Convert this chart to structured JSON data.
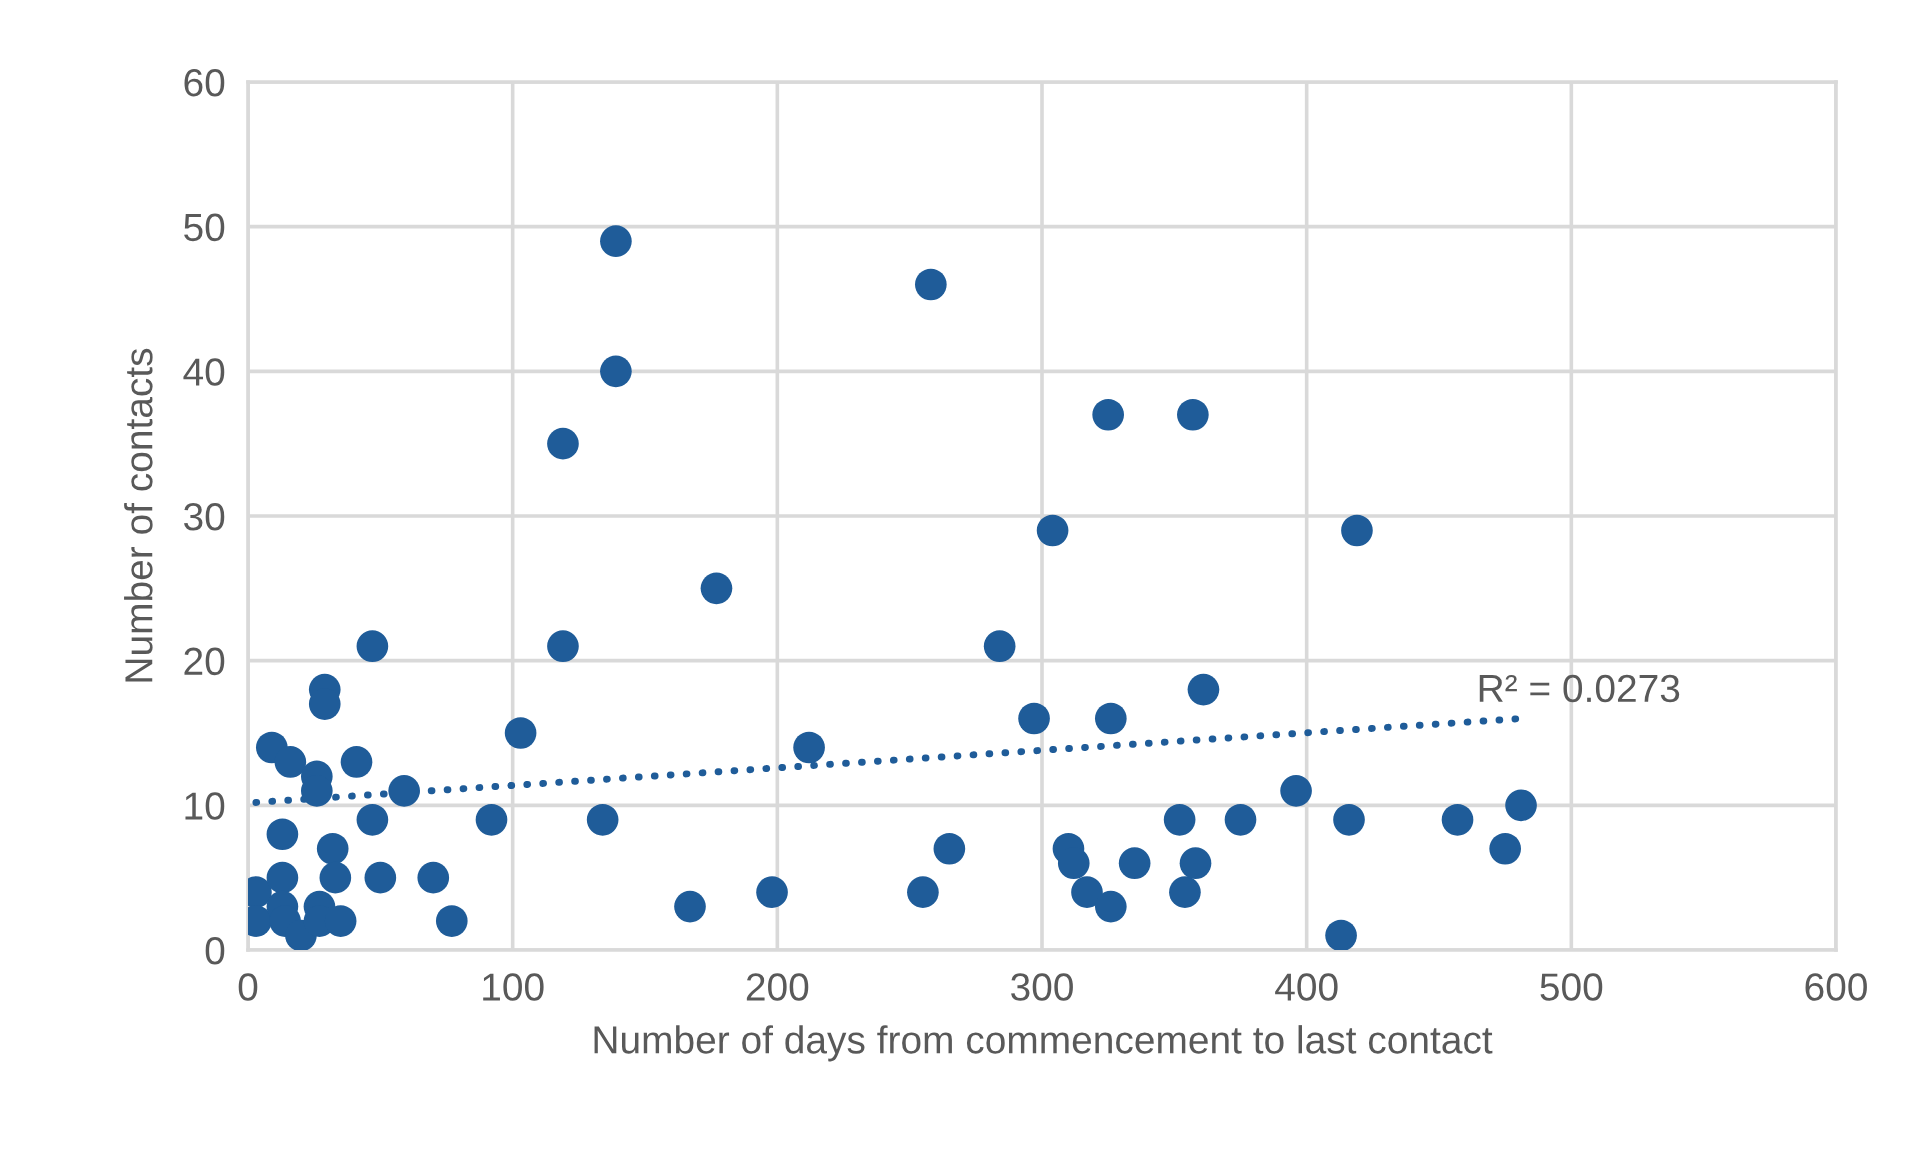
{
  "chart_data": {
    "type": "scatter",
    "xlabel": "Number of days from commencement to last contact",
    "ylabel": "Number of contacts",
    "xlim": [
      0,
      600
    ],
    "xticks": [
      0,
      100,
      200,
      300,
      400,
      500,
      600
    ],
    "ylim": [
      0,
      60
    ],
    "yticks": [
      0,
      10,
      20,
      30,
      40,
      50,
      60
    ],
    "grid": true,
    "marker": "circle",
    "series": [
      {
        "color": "#1f5c99",
        "x": [
          3,
          3,
          9,
          13,
          13,
          13,
          14,
          16,
          20,
          26,
          26,
          27,
          27,
          29,
          29,
          32,
          33,
          35,
          41,
          47,
          47,
          50,
          59,
          70,
          77,
          92,
          103,
          119,
          119,
          134,
          139,
          139,
          167,
          177,
          198,
          212,
          255,
          258,
          265,
          284,
          297,
          304,
          310,
          312,
          317,
          326,
          325,
          326,
          335,
          352,
          357,
          354,
          358,
          361,
          375,
          396,
          413,
          416,
          419,
          457,
          475,
          481
        ],
        "values": [
          4,
          2,
          14,
          8,
          5,
          3,
          2,
          13,
          1,
          12,
          11,
          3,
          2,
          18,
          17,
          7,
          5,
          2,
          13,
          21,
          9,
          5,
          11,
          5,
          2,
          9,
          15,
          35,
          21,
          9,
          49,
          40,
          3,
          25,
          4,
          14,
          4,
          46,
          7,
          21,
          16,
          29,
          7,
          6,
          4,
          16,
          37,
          3,
          6,
          9,
          37,
          4,
          6,
          18,
          9,
          11,
          1,
          9,
          29,
          9,
          7,
          10
        ]
      },
      {
        "type": "line",
        "color": "#1f5c99",
        "line_style": "dotted",
        "marker": "none",
        "x": [
          3,
          481
        ],
        "values": [
          10.2,
          16.0
        ]
      }
    ],
    "annotations": [
      {
        "text": "R² = 0.0273",
        "x": 481,
        "y": 16.0
      }
    ]
  }
}
